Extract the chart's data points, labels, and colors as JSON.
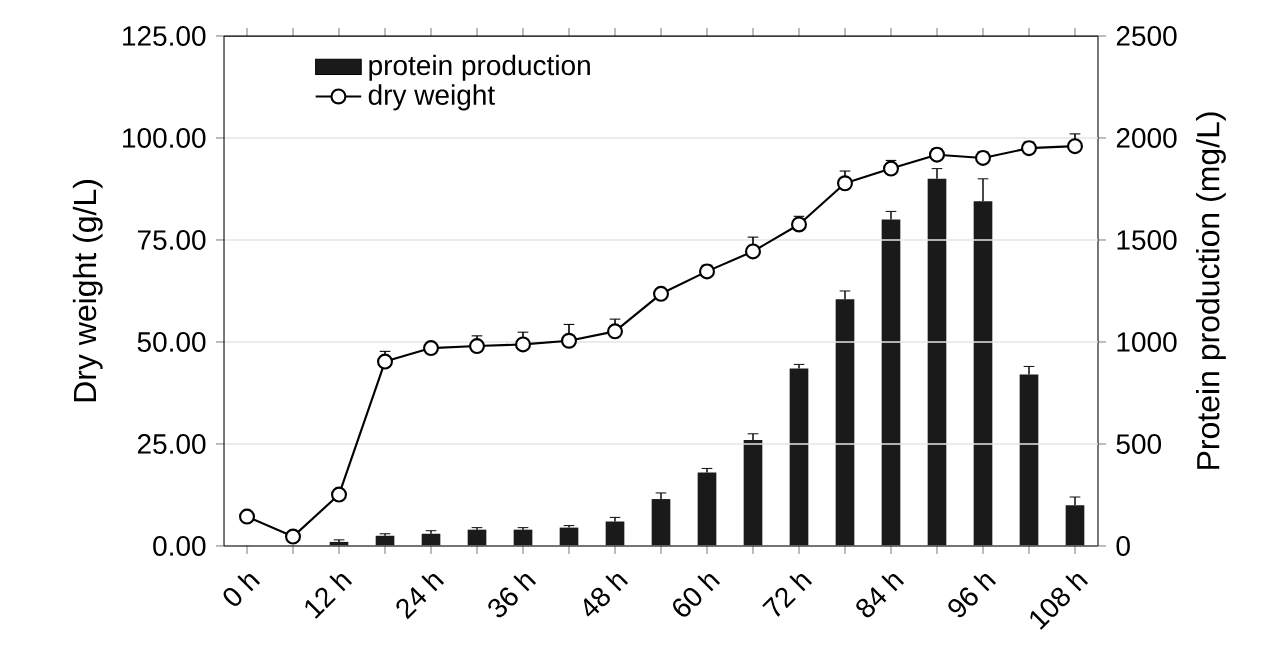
{
  "chart_data": {
    "type": "bar",
    "ylabel": "Dry weight (g/L)",
    "y2label": "Protein production (mg/L)",
    "categories": [
      "0 h",
      null,
      "12 h",
      null,
      "24 h",
      null,
      "36 h",
      null,
      "48 h",
      null,
      "60 h",
      null,
      "72 h",
      null,
      "84 h",
      null,
      "96 h",
      null,
      "108 h"
    ],
    "series": [
      {
        "name": "protein production",
        "axis": "y2",
        "color": "#1a1a1a",
        "values": [
          0,
          0,
          20,
          50,
          60,
          80,
          80,
          90,
          120,
          230,
          360,
          520,
          870,
          1210,
          1600,
          1800,
          1690,
          840,
          200
        ],
        "errors": [
          null,
          null,
          10,
          10,
          15,
          10,
          10,
          10,
          20,
          30,
          20,
          30,
          20,
          40,
          40,
          50,
          110,
          40,
          40
        ]
      },
      {
        "name": "dry weight",
        "type": "line",
        "color": "#000000",
        "marker": "circle",
        "values": [
          7.2,
          2.3,
          12.6,
          45.2,
          48.5,
          49,
          49.4,
          50.3,
          52.6,
          61.8,
          67.3,
          72.2,
          78.8,
          88.9,
          92.5,
          95.9,
          95.1,
          97.5,
          98
        ],
        "errors": [
          null,
          null,
          null,
          2.5,
          1,
          2.5,
          3,
          4,
          3,
          null,
          1.5,
          3.5,
          2,
          3,
          2,
          1.5,
          1.5,
          1.5,
          3
        ]
      }
    ],
    "ylim": [
      0,
      125
    ],
    "yticks": [
      {
        "value": 0,
        "label": "0.00"
      },
      {
        "value": 25,
        "label": "25.00"
      },
      {
        "value": 50,
        "label": "50.00"
      },
      {
        "value": 75,
        "label": "75.00"
      },
      {
        "value": 100,
        "label": "100.00"
      },
      {
        "value": 125,
        "label": "125.00"
      }
    ],
    "y2lim": [
      0,
      2500
    ],
    "y2ticks": [
      0,
      500,
      1000,
      1500,
      2000,
      2500
    ],
    "grid": "y",
    "legend": "top left"
  }
}
